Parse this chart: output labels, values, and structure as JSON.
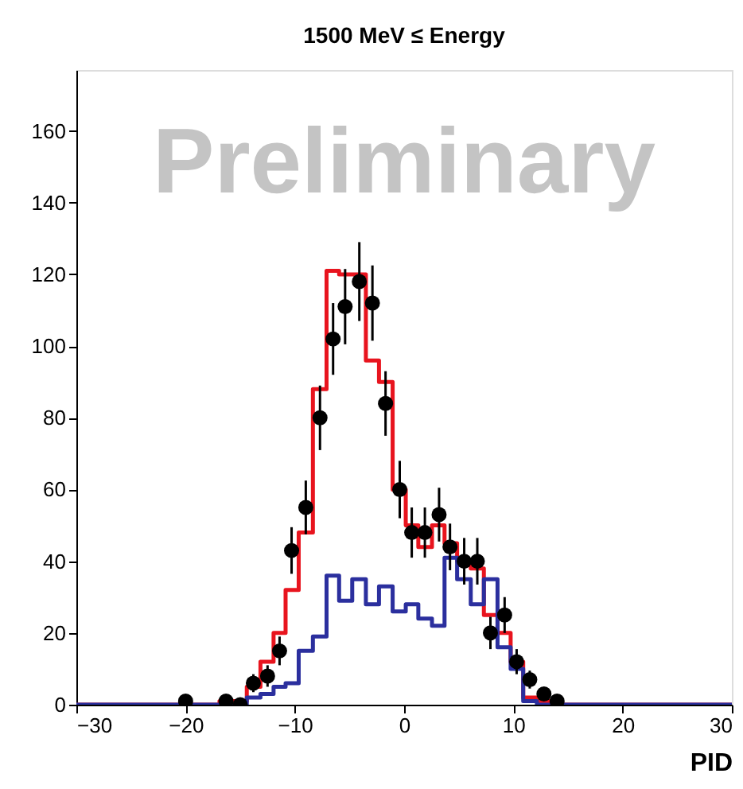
{
  "chart_data": {
    "type": "step",
    "title": "1500 MeV ≤ Energy",
    "xlabel": "PID",
    "annotations": [
      "Preliminary"
    ],
    "xlim": [
      -30,
      30
    ],
    "xticks": [
      -30,
      -20,
      -10,
      0,
      10,
      20,
      30
    ],
    "ylim": [
      0,
      177
    ],
    "yticks": [
      0,
      20,
      40,
      60,
      80,
      100,
      120,
      140,
      160
    ],
    "grid": false,
    "series": [
      {
        "color": "#e8141e",
        "x": [
          -30,
          -17.5,
          -16.3,
          -15,
          -13.8,
          -12.5,
          -11.4,
          -10.3,
          -9,
          -7.7,
          -6.5,
          -5.4,
          -4.1,
          -2.9,
          -1.7,
          -0.4,
          0.7,
          1.9,
          3.2,
          4.2,
          5.5,
          6.7,
          7.9,
          9.2,
          10.3,
          11.5,
          12.8,
          14,
          15.5,
          30
        ],
        "values": [
          0,
          0,
          1,
          1,
          5,
          12,
          20,
          32,
          48,
          88,
          121,
          120,
          120,
          96,
          90,
          60,
          50,
          44,
          50,
          45,
          40,
          38,
          25,
          20,
          12,
          2,
          1,
          0,
          0,
          0
        ]
      },
      {
        "color": "#2b2f9e",
        "x": [
          -30,
          -17.5,
          -16.3,
          -15,
          -13.8,
          -12.5,
          -11.4,
          -10.3,
          -9,
          -7.7,
          -6.5,
          -5.4,
          -4.1,
          -2.9,
          -1.7,
          -0.4,
          0.7,
          1.9,
          3.2,
          4.2,
          5.5,
          6.7,
          7.9,
          9.2,
          10.3,
          11.5,
          12.8,
          14,
          15.5,
          30
        ],
        "values": [
          0,
          0,
          0,
          0,
          2,
          3,
          5,
          6,
          15,
          19,
          36,
          29,
          35,
          28,
          33,
          26,
          28,
          24,
          22,
          41,
          35,
          28,
          35,
          16,
          10,
          1,
          0,
          0,
          0,
          0
        ]
      },
      {
        "type": "scatter",
        "color": "#000000",
        "marker": "circle",
        "x": [
          -20,
          -16.3,
          -15,
          -13.8,
          -12.5,
          -11.4,
          -10.3,
          -9,
          -7.7,
          -6.5,
          -5.4,
          -4.1,
          -2.9,
          -1.7,
          -0.4,
          0.7,
          1.9,
          3.2,
          4.2,
          5.5,
          6.7,
          7.9,
          9.2,
          10.3,
          11.5,
          12.8,
          14
        ],
        "values": [
          1,
          1,
          0,
          6,
          8,
          15,
          43,
          55,
          80,
          102,
          111,
          118,
          112,
          84,
          60,
          48,
          48,
          53,
          44,
          40,
          40,
          20,
          25,
          12,
          7,
          3,
          1
        ],
        "errors": [
          1,
          1,
          1,
          2.5,
          3,
          4,
          6.5,
          7.5,
          9,
          10,
          10.5,
          11,
          10.5,
          9,
          8,
          7,
          7,
          7.5,
          6.5,
          6.5,
          6.5,
          4.5,
          5,
          3.5,
          2.5,
          1.7,
          1
        ]
      }
    ]
  }
}
